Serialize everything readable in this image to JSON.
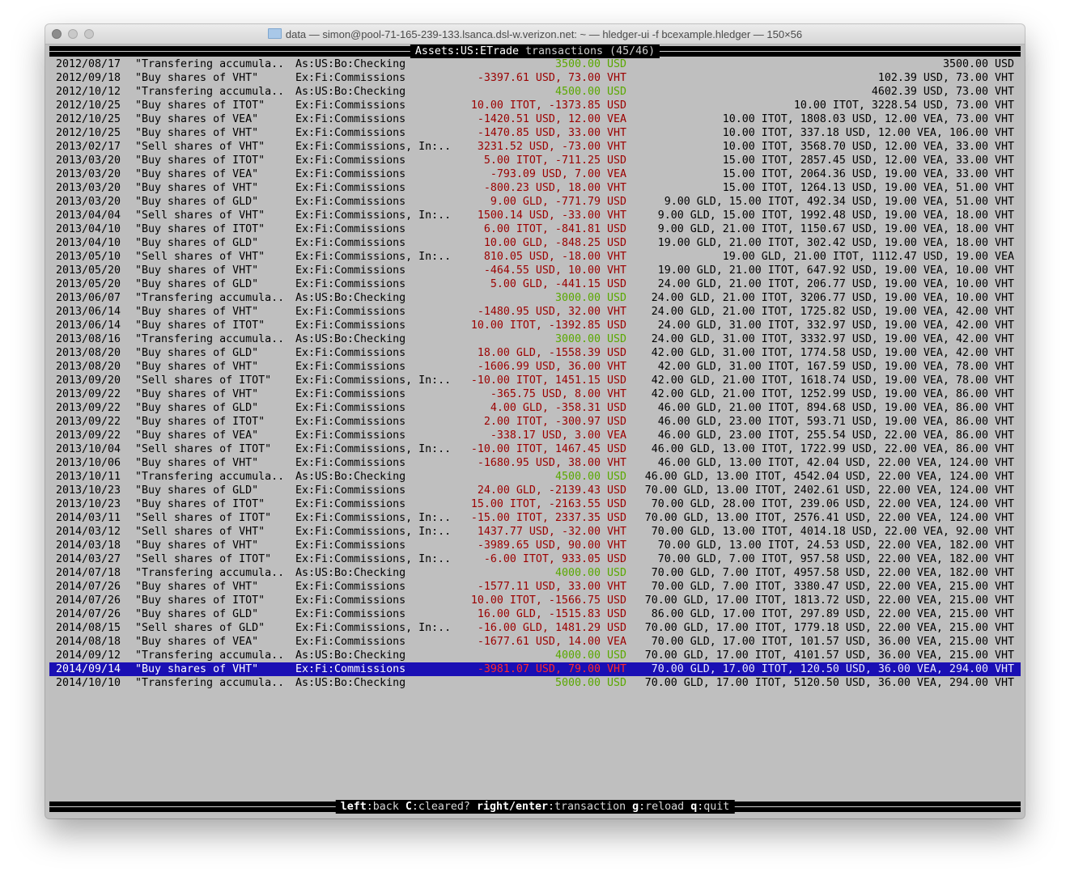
{
  "window": {
    "title": "data — simon@pool-71-165-239-133.lsanca.dsl-w.verizon.net: ~ — hledger-ui -f bcexample.hledger — 150×56"
  },
  "header": {
    "account": "Assets:US:ETrade",
    "suffix": " transactions (45/46)"
  },
  "colors": {
    "negative": "#9b0000",
    "positive": "#5aa800",
    "selection": "#1a0fb4",
    "background": "#bfbfbf"
  },
  "selected_index": 44,
  "rows": [
    [
      "2012/08/17",
      "\"Transfering accumula..",
      "As:US:Bo:Checking",
      "3500.00 USD",
      "3500.00 USD"
    ],
    [
      "2012/09/18",
      "\"Buy shares of VHT\"",
      "Ex:Fi:Commissions",
      "-3397.61 USD, 73.00 VHT",
      "102.39 USD, 73.00 VHT"
    ],
    [
      "2012/10/12",
      "\"Transfering accumula..",
      "As:US:Bo:Checking",
      "4500.00 USD",
      "4602.39 USD, 73.00 VHT"
    ],
    [
      "2012/10/25",
      "\"Buy shares of ITOT\"",
      "Ex:Fi:Commissions",
      "10.00 ITOT, -1373.85 USD",
      "10.00 ITOT, 3228.54 USD, 73.00 VHT"
    ],
    [
      "2012/10/25",
      "\"Buy shares of VEA\"",
      "Ex:Fi:Commissions",
      "-1420.51 USD, 12.00 VEA",
      "10.00 ITOT, 1808.03 USD, 12.00 VEA, 73.00 VHT"
    ],
    [
      "2012/10/25",
      "\"Buy shares of VHT\"",
      "Ex:Fi:Commissions",
      "-1470.85 USD, 33.00 VHT",
      "10.00 ITOT, 337.18 USD, 12.00 VEA, 106.00 VHT"
    ],
    [
      "2013/02/17",
      "\"Sell shares of VHT\"",
      "Ex:Fi:Commissions, In:..",
      "3231.52 USD, -73.00 VHT",
      "10.00 ITOT, 3568.70 USD, 12.00 VEA, 33.00 VHT"
    ],
    [
      "2013/03/20",
      "\"Buy shares of ITOT\"",
      "Ex:Fi:Commissions",
      "5.00 ITOT, -711.25 USD",
      "15.00 ITOT, 2857.45 USD, 12.00 VEA, 33.00 VHT"
    ],
    [
      "2013/03/20",
      "\"Buy shares of VEA\"",
      "Ex:Fi:Commissions",
      "-793.09 USD, 7.00 VEA",
      "15.00 ITOT, 2064.36 USD, 19.00 VEA, 33.00 VHT"
    ],
    [
      "2013/03/20",
      "\"Buy shares of VHT\"",
      "Ex:Fi:Commissions",
      "-800.23 USD, 18.00 VHT",
      "15.00 ITOT, 1264.13 USD, 19.00 VEA, 51.00 VHT"
    ],
    [
      "2013/03/20",
      "\"Buy shares of GLD\"",
      "Ex:Fi:Commissions",
      "9.00 GLD, -771.79 USD",
      "9.00 GLD, 15.00 ITOT, 492.34 USD, 19.00 VEA, 51.00 VHT"
    ],
    [
      "2013/04/04",
      "\"Sell shares of VHT\"",
      "Ex:Fi:Commissions, In:..",
      "1500.14 USD, -33.00 VHT",
      "9.00 GLD, 15.00 ITOT, 1992.48 USD, 19.00 VEA, 18.00 VHT"
    ],
    [
      "2013/04/10",
      "\"Buy shares of ITOT\"",
      "Ex:Fi:Commissions",
      "6.00 ITOT, -841.81 USD",
      "9.00 GLD, 21.00 ITOT, 1150.67 USD, 19.00 VEA, 18.00 VHT"
    ],
    [
      "2013/04/10",
      "\"Buy shares of GLD\"",
      "Ex:Fi:Commissions",
      "10.00 GLD, -848.25 USD",
      "19.00 GLD, 21.00 ITOT, 302.42 USD, 19.00 VEA, 18.00 VHT"
    ],
    [
      "2013/05/10",
      "\"Sell shares of VHT\"",
      "Ex:Fi:Commissions, In:..",
      "810.05 USD, -18.00 VHT",
      "19.00 GLD, 21.00 ITOT, 1112.47 USD, 19.00 VEA"
    ],
    [
      "2013/05/20",
      "\"Buy shares of VHT\"",
      "Ex:Fi:Commissions",
      "-464.55 USD, 10.00 VHT",
      "19.00 GLD, 21.00 ITOT, 647.92 USD, 19.00 VEA, 10.00 VHT"
    ],
    [
      "2013/05/20",
      "\"Buy shares of GLD\"",
      "Ex:Fi:Commissions",
      "5.00 GLD, -441.15 USD",
      "24.00 GLD, 21.00 ITOT, 206.77 USD, 19.00 VEA, 10.00 VHT"
    ],
    [
      "2013/06/07",
      "\"Transfering accumula..",
      "As:US:Bo:Checking",
      "3000.00 USD",
      "24.00 GLD, 21.00 ITOT, 3206.77 USD, 19.00 VEA, 10.00 VHT"
    ],
    [
      "2013/06/14",
      "\"Buy shares of VHT\"",
      "Ex:Fi:Commissions",
      "-1480.95 USD, 32.00 VHT",
      "24.00 GLD, 21.00 ITOT, 1725.82 USD, 19.00 VEA, 42.00 VHT"
    ],
    [
      "2013/06/14",
      "\"Buy shares of ITOT\"",
      "Ex:Fi:Commissions",
      "10.00 ITOT, -1392.85 USD",
      "24.00 GLD, 31.00 ITOT, 332.97 USD, 19.00 VEA, 42.00 VHT"
    ],
    [
      "2013/08/16",
      "\"Transfering accumula..",
      "As:US:Bo:Checking",
      "3000.00 USD",
      "24.00 GLD, 31.00 ITOT, 3332.97 USD, 19.00 VEA, 42.00 VHT"
    ],
    [
      "2013/08/20",
      "\"Buy shares of GLD\"",
      "Ex:Fi:Commissions",
      "18.00 GLD, -1558.39 USD",
      "42.00 GLD, 31.00 ITOT, 1774.58 USD, 19.00 VEA, 42.00 VHT"
    ],
    [
      "2013/08/20",
      "\"Buy shares of VHT\"",
      "Ex:Fi:Commissions",
      "-1606.99 USD, 36.00 VHT",
      "42.00 GLD, 31.00 ITOT, 167.59 USD, 19.00 VEA, 78.00 VHT"
    ],
    [
      "2013/09/20",
      "\"Sell shares of ITOT\"",
      "Ex:Fi:Commissions, In:..",
      "-10.00 ITOT, 1451.15 USD",
      "42.00 GLD, 21.00 ITOT, 1618.74 USD, 19.00 VEA, 78.00 VHT"
    ],
    [
      "2013/09/22",
      "\"Buy shares of VHT\"",
      "Ex:Fi:Commissions",
      "-365.75 USD, 8.00 VHT",
      "42.00 GLD, 21.00 ITOT, 1252.99 USD, 19.00 VEA, 86.00 VHT"
    ],
    [
      "2013/09/22",
      "\"Buy shares of GLD\"",
      "Ex:Fi:Commissions",
      "4.00 GLD, -358.31 USD",
      "46.00 GLD, 21.00 ITOT, 894.68 USD, 19.00 VEA, 86.00 VHT"
    ],
    [
      "2013/09/22",
      "\"Buy shares of ITOT\"",
      "Ex:Fi:Commissions",
      "2.00 ITOT, -300.97 USD",
      "46.00 GLD, 23.00 ITOT, 593.71 USD, 19.00 VEA, 86.00 VHT"
    ],
    [
      "2013/09/22",
      "\"Buy shares of VEA\"",
      "Ex:Fi:Commissions",
      "-338.17 USD, 3.00 VEA",
      "46.00 GLD, 23.00 ITOT, 255.54 USD, 22.00 VEA, 86.00 VHT"
    ],
    [
      "2013/10/04",
      "\"Sell shares of ITOT\"",
      "Ex:Fi:Commissions, In:..",
      "-10.00 ITOT, 1467.45 USD",
      "46.00 GLD, 13.00 ITOT, 1722.99 USD, 22.00 VEA, 86.00 VHT"
    ],
    [
      "2013/10/06",
      "\"Buy shares of VHT\"",
      "Ex:Fi:Commissions",
      "-1680.95 USD, 38.00 VHT",
      "46.00 GLD, 13.00 ITOT, 42.04 USD, 22.00 VEA, 124.00 VHT"
    ],
    [
      "2013/10/11",
      "\"Transfering accumula..",
      "As:US:Bo:Checking",
      "4500.00 USD",
      "46.00 GLD, 13.00 ITOT, 4542.04 USD, 22.00 VEA, 124.00 VHT"
    ],
    [
      "2013/10/23",
      "\"Buy shares of GLD\"",
      "Ex:Fi:Commissions",
      "24.00 GLD, -2139.43 USD",
      "70.00 GLD, 13.00 ITOT, 2402.61 USD, 22.00 VEA, 124.00 VHT"
    ],
    [
      "2013/10/23",
      "\"Buy shares of ITOT\"",
      "Ex:Fi:Commissions",
      "15.00 ITOT, -2163.55 USD",
      "70.00 GLD, 28.00 ITOT, 239.06 USD, 22.00 VEA, 124.00 VHT"
    ],
    [
      "2014/03/11",
      "\"Sell shares of ITOT\"",
      "Ex:Fi:Commissions, In:..",
      "-15.00 ITOT, 2337.35 USD",
      "70.00 GLD, 13.00 ITOT, 2576.41 USD, 22.00 VEA, 124.00 VHT"
    ],
    [
      "2014/03/12",
      "\"Sell shares of VHT\"",
      "Ex:Fi:Commissions, In:..",
      "1437.77 USD, -32.00 VHT",
      "70.00 GLD, 13.00 ITOT, 4014.18 USD, 22.00 VEA, 92.00 VHT"
    ],
    [
      "2014/03/18",
      "\"Buy shares of VHT\"",
      "Ex:Fi:Commissions",
      "-3989.65 USD, 90.00 VHT",
      "70.00 GLD, 13.00 ITOT, 24.53 USD, 22.00 VEA, 182.00 VHT"
    ],
    [
      "2014/03/27",
      "\"Sell shares of ITOT\"",
      "Ex:Fi:Commissions, In:..",
      "-6.00 ITOT, 933.05 USD",
      "70.00 GLD, 7.00 ITOT, 957.58 USD, 22.00 VEA, 182.00 VHT"
    ],
    [
      "2014/07/18",
      "\"Transfering accumula..",
      "As:US:Bo:Checking",
      "4000.00 USD",
      "70.00 GLD, 7.00 ITOT, 4957.58 USD, 22.00 VEA, 182.00 VHT"
    ],
    [
      "2014/07/26",
      "\"Buy shares of VHT\"",
      "Ex:Fi:Commissions",
      "-1577.11 USD, 33.00 VHT",
      "70.00 GLD, 7.00 ITOT, 3380.47 USD, 22.00 VEA, 215.00 VHT"
    ],
    [
      "2014/07/26",
      "\"Buy shares of ITOT\"",
      "Ex:Fi:Commissions",
      "10.00 ITOT, -1566.75 USD",
      "70.00 GLD, 17.00 ITOT, 1813.72 USD, 22.00 VEA, 215.00 VHT"
    ],
    [
      "2014/07/26",
      "\"Buy shares of GLD\"",
      "Ex:Fi:Commissions",
      "16.00 GLD, -1515.83 USD",
      "86.00 GLD, 17.00 ITOT, 297.89 USD, 22.00 VEA, 215.00 VHT"
    ],
    [
      "2014/08/15",
      "\"Sell shares of GLD\"",
      "Ex:Fi:Commissions, In:..",
      "-16.00 GLD, 1481.29 USD",
      "70.00 GLD, 17.00 ITOT, 1779.18 USD, 22.00 VEA, 215.00 VHT"
    ],
    [
      "2014/08/18",
      "\"Buy shares of VEA\"",
      "Ex:Fi:Commissions",
      "-1677.61 USD, 14.00 VEA",
      "70.00 GLD, 17.00 ITOT, 101.57 USD, 36.00 VEA, 215.00 VHT"
    ],
    [
      "2014/09/12",
      "\"Transfering accumula..",
      "As:US:Bo:Checking",
      "4000.00 USD",
      "70.00 GLD, 17.00 ITOT, 4101.57 USD, 36.00 VEA, 215.00 VHT"
    ],
    [
      "2014/09/14",
      "\"Buy shares of VHT\"",
      "Ex:Fi:Commissions",
      "-3981.07 USD, 79.00 VHT",
      "70.00 GLD, 17.00 ITOT, 120.50 USD, 36.00 VEA, 294.00 VHT"
    ],
    [
      "2014/10/10",
      "\"Transfering accumula..",
      "As:US:Bo:Checking",
      "5000.00 USD",
      "70.00 GLD, 17.00 ITOT, 5120.50 USD, 36.00 VEA, 294.00 VHT"
    ]
  ],
  "footer": [
    {
      "key": "left",
      "action": "back"
    },
    {
      "key": "C",
      "action": "cleared?"
    },
    {
      "key": "right/enter",
      "action": "transaction"
    },
    {
      "key": "g",
      "action": "reload"
    },
    {
      "key": "q",
      "action": "quit"
    }
  ]
}
